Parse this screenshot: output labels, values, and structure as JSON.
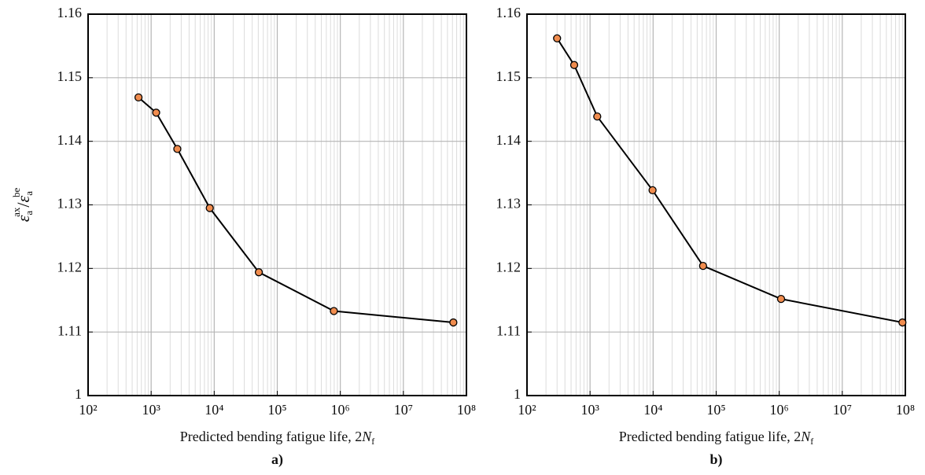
{
  "chart_data": [
    {
      "type": "line",
      "caption": "a)",
      "ylabel_parts": [
        "ε",
        "a",
        "ax",
        "/",
        "ε",
        "a",
        "be"
      ],
      "xlabel_parts": [
        "Predicted bending fatigue life, 2",
        "N",
        "f"
      ],
      "x": [
        630,
        1200,
        2600,
        8500,
        51000,
        790000,
        62000000
      ],
      "values": [
        1.1469,
        1.1445,
        1.1388,
        1.1295,
        1.1194,
        1.1133,
        1.1115
      ],
      "xlim": [
        100,
        100000000
      ],
      "ylim": [
        1,
        1.16
      ],
      "xticks": [
        {
          "value": 100,
          "label": "10²"
        },
        {
          "value": 1000,
          "label": "10³"
        },
        {
          "value": 10000,
          "label": "10⁴"
        },
        {
          "value": 100000,
          "label": "10⁵"
        },
        {
          "value": 1000000,
          "label": "10⁶"
        },
        {
          "value": 10000000,
          "label": "10⁷"
        },
        {
          "value": 100000000,
          "label": "10⁸"
        }
      ],
      "yticks": [
        1,
        1.11,
        1.12,
        1.13,
        1.14,
        1.15,
        1.16
      ],
      "xlog": true,
      "grid": true,
      "line_color": "#000000",
      "marker_color": "#f08c4e"
    },
    {
      "type": "line",
      "caption": "b)",
      "xlabel_parts": [
        "Predicted bending fatigue life, 2",
        "N",
        "f"
      ],
      "x": [
        300,
        560,
        1300,
        9800,
        62000,
        1070000,
        90000000
      ],
      "values": [
        1.1562,
        1.152,
        1.1439,
        1.1323,
        1.1204,
        1.1152,
        1.1115
      ],
      "xlim": [
        100,
        100000000
      ],
      "ylim": [
        1,
        1.16
      ],
      "xticks": [
        {
          "value": 100,
          "label": "10²"
        },
        {
          "value": 1000,
          "label": "10³"
        },
        {
          "value": 10000,
          "label": "10⁴"
        },
        {
          "value": 100000,
          "label": "10⁵"
        },
        {
          "value": 1000000,
          "label": "10⁶"
        },
        {
          "value": 10000000,
          "label": "10⁷"
        },
        {
          "value": 100000000,
          "label": "10⁸"
        }
      ],
      "yticks": [
        1,
        1.11,
        1.12,
        1.13,
        1.14,
        1.15,
        1.16
      ],
      "xlog": true,
      "grid": true,
      "line_color": "#000000",
      "marker_color": "#f08c4e"
    }
  ]
}
